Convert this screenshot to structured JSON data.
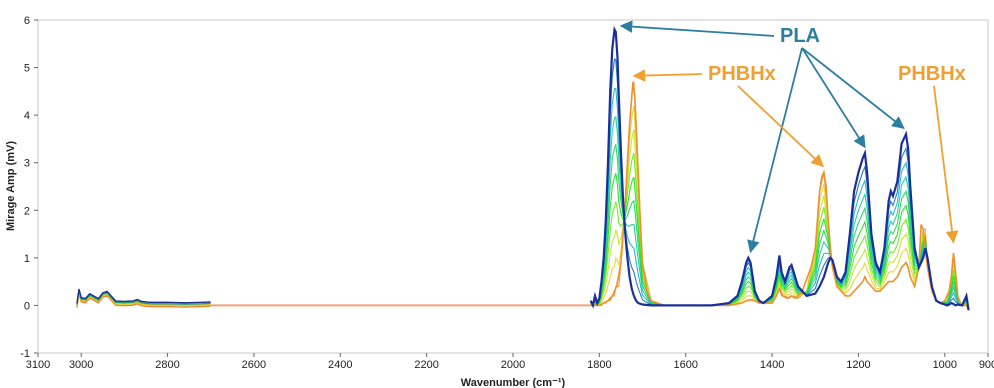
{
  "chart_data": {
    "type": "line",
    "xlabel": "Wavenumber (cm⁻¹)",
    "ylabel": "Mirage Amp (mV)",
    "xlim": [
      3100,
      900
    ],
    "ylim": [
      -1,
      6
    ],
    "x_ticks": [
      3100,
      3000,
      2800,
      2600,
      2400,
      2200,
      2000,
      1800,
      1600,
      1400,
      1200,
      1000,
      900
    ],
    "y_ticks": [
      -1,
      0,
      1,
      2,
      3,
      4,
      5,
      6
    ],
    "grid": false,
    "legend": "none",
    "colors": {
      "pla_series": "#1a2f9a",
      "phbhx_series": "#f0902a",
      "gap_line": "#f5a07a",
      "pla_annotation": "#2e7ea0",
      "phbhx_annotation": "#f0a030"
    },
    "gap_segment": {
      "x": [
        2700,
        1820
      ],
      "y": [
        0,
        0
      ]
    },
    "series": [
      {
        "x": [
          3010,
          3005,
          3000,
          2990,
          2980,
          2970,
          2960,
          2950,
          2940,
          2930,
          2920,
          2900,
          2880,
          2870,
          2860,
          2840,
          2800,
          2760,
          2720,
          2700
        ],
        "y": [
          0.0,
          0.3,
          0.12,
          0.1,
          0.2,
          0.15,
          0.1,
          0.22,
          0.25,
          0.15,
          0.05,
          0.04,
          0.05,
          0.08,
          0.04,
          0.02,
          0.02,
          0.01,
          0.02,
          0.03
        ]
      },
      {
        "x": [
          1820,
          1815,
          1810,
          1805,
          1800,
          1795,
          1790,
          1785,
          1780,
          1775,
          1770,
          1765,
          1762,
          1758,
          1755,
          1750,
          1745,
          1740,
          1735,
          1730,
          1725,
          1720,
          1715,
          1710,
          1700,
          1680,
          1650,
          1600,
          1560,
          1550,
          1540,
          1500,
          1480,
          1470,
          1460,
          1455,
          1450,
          1445,
          1440,
          1430,
          1420,
          1400,
          1390,
          1383,
          1378,
          1370,
          1360,
          1355,
          1350,
          1340,
          1320,
          1300,
          1290,
          1280,
          1270,
          1265,
          1260,
          1250,
          1240,
          1230,
          1220,
          1210,
          1200,
          1190,
          1185,
          1180,
          1170,
          1160,
          1150,
          1140,
          1130,
          1125,
          1120,
          1110,
          1100,
          1090,
          1085,
          1080,
          1070,
          1060,
          1050,
          1045,
          1040,
          1030,
          1020,
          1010,
          1000,
          995,
          990,
          985,
          980,
          975,
          970,
          960,
          950,
          945
        ],
        "y": [
          0.1,
          0.0,
          0.2,
          0.05,
          0.15,
          0.5,
          1.0,
          1.8,
          3.0,
          4.5,
          5.4,
          5.8,
          5.75,
          5.2,
          4.4,
          3.2,
          2.2,
          1.5,
          1.0,
          0.6,
          0.35,
          0.2,
          0.1,
          0.05,
          0.02,
          0.0,
          0.0,
          0.0,
          0.0,
          0.0,
          0.0,
          0.05,
          0.2,
          0.5,
          0.9,
          1.0,
          0.9,
          0.6,
          0.3,
          0.1,
          0.05,
          0.2,
          0.6,
          1.05,
          0.7,
          0.5,
          0.8,
          0.85,
          0.7,
          0.4,
          0.2,
          0.25,
          0.4,
          0.6,
          0.9,
          1.0,
          0.95,
          0.6,
          0.5,
          0.7,
          1.5,
          2.4,
          2.8,
          3.1,
          3.2,
          2.8,
          1.5,
          0.9,
          0.7,
          1.2,
          2.2,
          2.4,
          2.3,
          2.6,
          3.4,
          3.6,
          3.3,
          2.5,
          1.2,
          0.8,
          1.0,
          1.2,
          1.0,
          0.4,
          0.1,
          0.05,
          0.02,
          0.0,
          0.02,
          0.05,
          0.03,
          0.0,
          0.02,
          0.0,
          0.2,
          -0.1
        ]
      },
      {
        "x": [
          1820,
          1800,
          1790,
          1780,
          1770,
          1760,
          1750,
          1745,
          1740,
          1735,
          1730,
          1725,
          1722,
          1718,
          1715,
          1710,
          1705,
          1700,
          1690,
          1680,
          1650,
          1600,
          1560,
          1500,
          1470,
          1460,
          1450,
          1440,
          1430,
          1400,
          1390,
          1383,
          1375,
          1365,
          1355,
          1345,
          1330,
          1310,
          1300,
          1295,
          1290,
          1285,
          1280,
          1275,
          1270,
          1265,
          1260,
          1250,
          1240,
          1230,
          1220,
          1210,
          1200,
          1190,
          1185,
          1180,
          1170,
          1160,
          1150,
          1140,
          1130,
          1125,
          1120,
          1110,
          1100,
          1090,
          1085,
          1080,
          1070,
          1060,
          1055,
          1050,
          1040,
          1030,
          1020,
          1010,
          1000,
          990,
          985,
          980,
          975,
          970,
          965,
          960,
          950,
          945
        ],
        "y": [
          0.0,
          0.0,
          0.05,
          0.1,
          0.2,
          0.4,
          0.9,
          1.5,
          2.2,
          3.0,
          3.8,
          4.4,
          4.7,
          4.4,
          3.8,
          2.8,
          1.7,
          0.9,
          0.3,
          0.1,
          0.0,
          0.0,
          0.0,
          0.0,
          0.05,
          0.1,
          0.12,
          0.1,
          0.05,
          0.05,
          0.2,
          0.35,
          0.2,
          0.15,
          0.2,
          0.15,
          0.3,
          0.8,
          1.2,
          1.8,
          2.4,
          2.7,
          2.8,
          2.5,
          1.8,
          1.2,
          0.8,
          0.4,
          0.3,
          0.2,
          0.2,
          0.3,
          0.4,
          0.5,
          0.6,
          0.5,
          0.4,
          0.3,
          0.3,
          0.4,
          0.5,
          0.5,
          0.5,
          0.6,
          0.8,
          0.9,
          0.8,
          0.6,
          0.4,
          0.8,
          1.7,
          1.6,
          0.8,
          0.3,
          0.1,
          0.05,
          0.1,
          0.3,
          0.6,
          1.1,
          0.7,
          0.2,
          0.05,
          0.0,
          0.0,
          -0.1
        ]
      }
    ],
    "annotations": [
      {
        "text": "PLA",
        "targets": [
          [
            1750,
            5.75
          ],
          [
            1450,
            1.0
          ],
          [
            1185,
            3.2
          ],
          [
            1095,
            3.6
          ]
        ]
      },
      {
        "text": "PHBHx",
        "targets": [
          [
            1720,
            4.7
          ]
        ]
      },
      {
        "text": "PHBHx",
        "targets": [
          [
            1282,
            2.8
          ],
          [
            980,
            1.2
          ]
        ]
      }
    ]
  }
}
